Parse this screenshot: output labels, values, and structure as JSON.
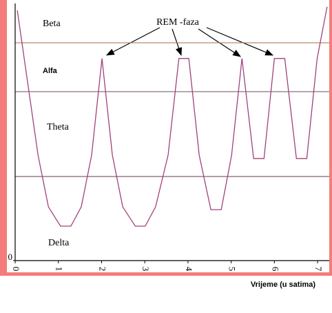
{
  "chart_data": {
    "type": "line",
    "stage_labels": [
      "Beta",
      "Alfa",
      "Theta",
      "Delta"
    ],
    "stage_thresholds": [
      84.7,
      65.7,
      32.7
    ],
    "annotation": "REM -faza",
    "x_label": "Vrijeme (u satima)",
    "xlim": [
      0,
      7.27
    ],
    "ylim": [
      0,
      100
    ],
    "xticks": [
      0,
      1,
      2,
      3,
      4,
      5,
      6,
      7
    ],
    "yticks": [
      0
    ],
    "color": "#a0407a",
    "x": [
      0.05,
      0.53,
      0.77,
      1.05,
      1.29,
      1.53,
      1.77,
      2.01,
      2.25,
      2.49,
      2.78,
      3.01,
      3.25,
      3.54,
      3.79,
      4.02,
      4.26,
      4.53,
      4.77,
      5.01,
      5.25,
      5.52,
      5.76,
      6.0,
      6.24,
      6.51,
      6.75,
      6.99,
      7.22
    ],
    "values": [
      97.3,
      41,
      20.9,
      13.4,
      13.4,
      20.9,
      41,
      78.6,
      41,
      20.9,
      13.4,
      13.4,
      20.9,
      41,
      78.6,
      78.6,
      41,
      19.8,
      19.8,
      41,
      78.6,
      39.7,
      39.7,
      78.6,
      78.6,
      39.7,
      39.7,
      78.6,
      98.7
    ]
  }
}
